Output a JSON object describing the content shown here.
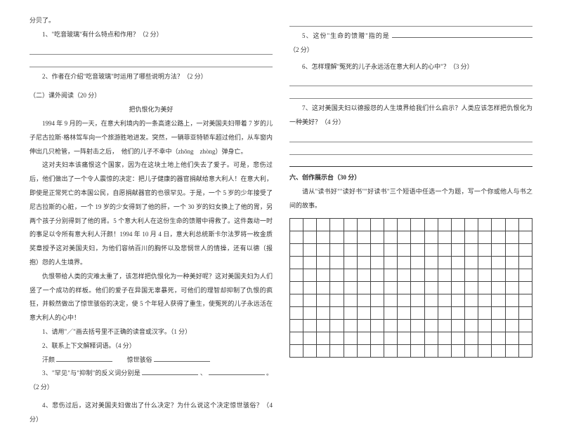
{
  "left": {
    "top1": "分贝了。",
    "q1": "1、\"吃音玻璃\"有什么特点和作用？（2 分）",
    "q2": "2、作者在介绍\"吃音玻璃\"时运用了哪些说明方法？（2 分）",
    "section": "（二）课外阅读（20 分）",
    "title": "把仇恨化为美好",
    "p1": "1994 年 9 月的一天，在意大利境内的一条高速公路上，一对美国夫妇带着 7 岁的儿子尼古拉斯·格林驾车向一个旅游胜地进发。突然，一辆菲亚特轿车超过他们，从车窗内伸出几只枪管，一阵射击之后，　他们的儿子不幸中（zhōng　zhòng）弹身亡。",
    "p2": "这对夫妇本该痛恨这个国家，因为在这块土地上他们失去了爱子。可是，悲伤过后，他们做出了一个令人震惊的决定：把儿子健康的器官捐献给意大利人！在意大利，即使是正常死亡的本国公民，自愿捐献器官的也很罕见。于是，一个 5 岁的少年接受了尼古拉斯的心脏，一个 19 岁的少女得到了他的肝，一个 30 岁的妇女换上了他的胃，另两个孩子分别得到了他的肾。5 个意大利人在这份生命的馈赠中得救了。这件轰动一时的事足以令所有意大利人汗颜！1994 年 10 月 4 日，意大利总统斯卡尔法罗将一枚金质奖章授予这对美国夫妇，为他们容纳百川的胸怀以及悲悯世人的情操，还有以德（报　抱）怨的人生境界。",
    "p3": "仇恨带给人类的灾难太重了，该怎样把仇恨化为一种美好呢？这对美国夫妇为人们竖了一个成功的样板。他们的爱子在异国无辜暴死，可他们的理智却抑制了仇恨的疯狂，并毅然做出了惊世骇俗的决定，使 5 个年轻人获得了重生，使冤死的儿子永远活在意大利人的心中！",
    "sq1": "1、请用\"／\"画去括号里不正确的读音或汉字。（1 分）",
    "sq2": "2、联系上下文解释词语。（4 分）",
    "sq2a": "汗颜",
    "sq2b": "惊世骇俗",
    "sq3a": "3、\"罕见\"与\"抑制\"的反义词分别是",
    "sq3b": "、",
    "sq3c": "。（2 分）",
    "sq4": "4、悲伤过后，这对美国夫妇做出了什么决定？为什么说这个决定惊世骇俗？（4 分）"
  },
  "right": {
    "q5a": "5、这份\"生命的馈赠\"指的是",
    "q5b": "（2 分）",
    "q6": "6、怎样理解\"冤死的儿子永远活在意大利人的心中\"？（3 分）",
    "q7": "7、这对美国夫妇以德报怨的人生境界给我们什么启示？人类应该怎样把仇恨化为一种美好？（4 分）",
    "section6": "六、创作展示台（30 分）",
    "prompt": "请从\"读书好\"\"读好书\"\"好读书\"三个短语中任选一个为题，写一个你或他人与书之间的故事。"
  },
  "grid": {
    "rows": 11,
    "cols": 18
  }
}
